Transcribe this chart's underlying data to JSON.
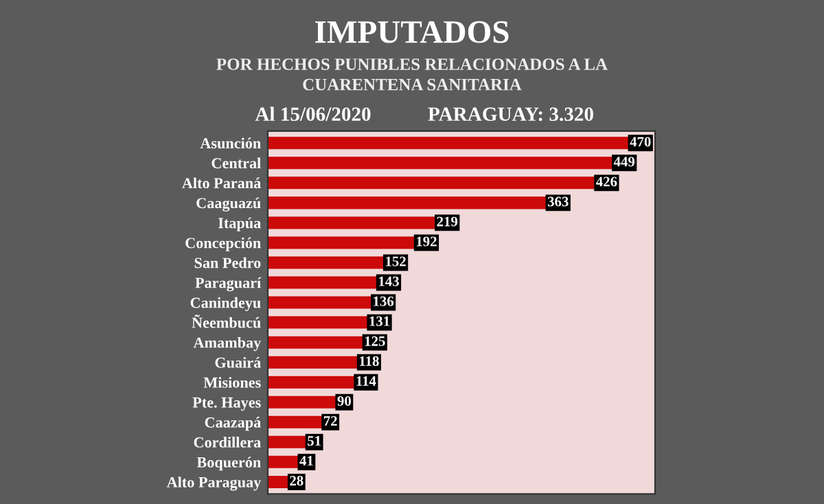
{
  "chart_data": {
    "type": "bar",
    "orientation": "horizontal",
    "title": "IMPUTADOS",
    "subtitle": "POR HECHOS PUNIBLES RELACIONADOS A LA\nCUARENTENA SANITARIA",
    "annotations": [
      "Al 15/06/2020",
      "PARAGUAY: 3.320"
    ],
    "categories": [
      "Asunción",
      "Central",
      "Alto Paraná",
      "Caaguazú",
      "Itapúa",
      "Concepción",
      "San Pedro",
      "Paraguarí",
      "Canindeyu",
      "Ñeembucú",
      "Amambay",
      "Guairá",
      "Misiones",
      "Pte. Hayes",
      "Caazapá",
      "Cordillera",
      "Boquerón",
      "Alto Paraguay"
    ],
    "values": [
      470,
      449,
      426,
      363,
      219,
      192,
      152,
      143,
      136,
      131,
      125,
      118,
      114,
      90,
      72,
      51,
      41,
      28
    ],
    "color": "#cc0a0a",
    "data_labels": true,
    "grid": false,
    "legend": false
  }
}
